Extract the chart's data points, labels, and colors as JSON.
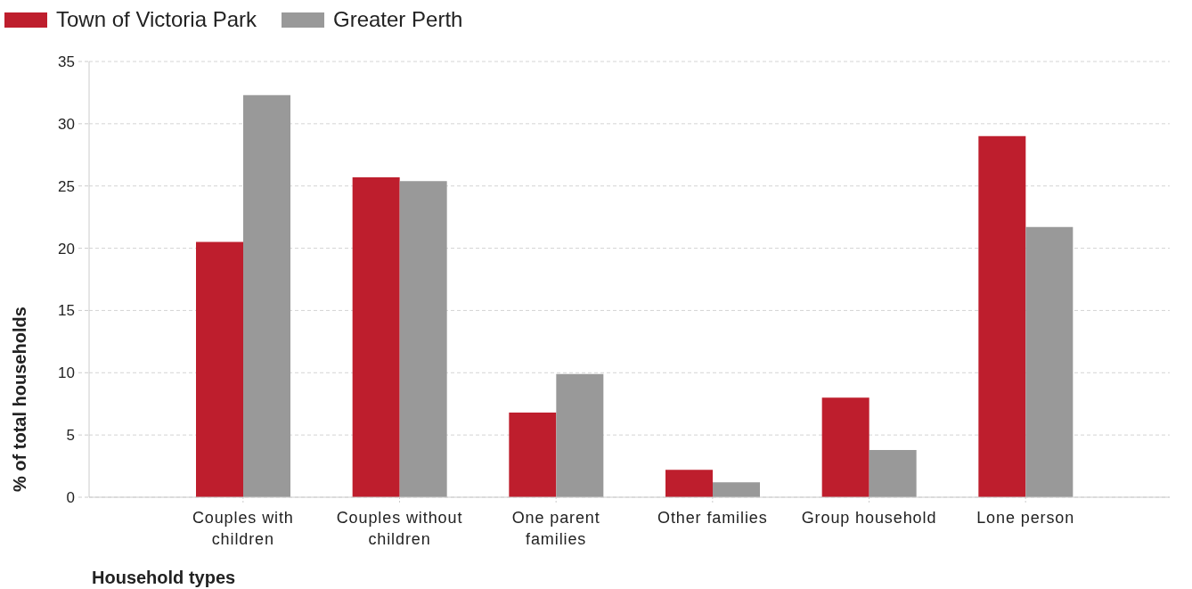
{
  "chart_data": {
    "type": "bar",
    "categories": [
      "Couples with children",
      "Couples without children",
      "One parent families",
      "Other families",
      "Group household",
      "Lone person"
    ],
    "series": [
      {
        "name": "Town of Victoria Park",
        "color": "#be1e2d",
        "values": [
          20.5,
          25.7,
          6.8,
          2.2,
          8.0,
          29.0
        ]
      },
      {
        "name": "Greater Perth",
        "color": "#999999",
        "values": [
          32.3,
          25.4,
          9.9,
          1.2,
          3.8,
          21.7
        ]
      }
    ],
    "ylim": [
      0,
      35
    ],
    "yticks": [
      0,
      5,
      10,
      15,
      20,
      25,
      30,
      35
    ],
    "xlabel": "Household types",
    "ylabel": "% of total households",
    "grid": "y",
    "legend": "top left"
  }
}
